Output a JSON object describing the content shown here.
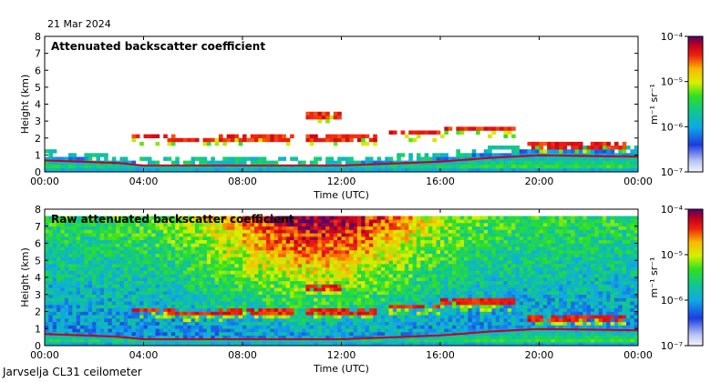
{
  "date_label": "21 Mar 2024",
  "footer_label": "Jarvselja CL31 ceilometer",
  "chart_data": [
    {
      "type": "heatmap",
      "title": "Attenuated backscatter coefficient",
      "xlabel": "Time (UTC)",
      "ylabel": "Height (km)",
      "xticks": [
        "00:00",
        "04:00",
        "08:00",
        "12:00",
        "16:00",
        "20:00",
        "00:00"
      ],
      "xlim_hours": [
        0,
        24
      ],
      "ylim": [
        0,
        8
      ],
      "yticks": [
        0,
        1,
        2,
        3,
        4,
        5,
        6,
        7,
        8
      ],
      "colorbar": {
        "unit": "m⁻¹ sr⁻¹",
        "scale": "log",
        "range": [
          1e-07,
          0.0001
        ],
        "tick_labels": [
          "10⁻⁴",
          "10⁻⁵",
          "10⁻⁶",
          "10⁻⁷"
        ]
      },
      "features": {
        "boundary_layer_top_km": [
          [
            0,
            0.9
          ],
          [
            3,
            0.7
          ],
          [
            4,
            0.5
          ],
          [
            8,
            0.5
          ],
          [
            12,
            0.5
          ],
          [
            16,
            0.8
          ],
          [
            18,
            1.1
          ],
          [
            20,
            1.3
          ],
          [
            24,
            1.2
          ]
        ],
        "cloud_layers": [
          {
            "start": 3.5,
            "end": 5.2,
            "height": 2.1
          },
          {
            "start": 5.0,
            "end": 7.5,
            "height": 1.9
          },
          {
            "start": 7.0,
            "end": 10.0,
            "height": 1.95
          },
          {
            "start": 10.5,
            "end": 13.5,
            "height": 2.0
          },
          {
            "start": 14.0,
            "end": 16.0,
            "height": 2.3
          },
          {
            "start": 16.0,
            "end": 19.0,
            "height": 2.55
          },
          {
            "start": 10.5,
            "end": 12.0,
            "height": 3.35
          },
          {
            "start": 19.5,
            "end": 23.5,
            "height": 1.6
          }
        ]
      }
    },
    {
      "type": "heatmap",
      "title": "Raw attenuated backscatter coefficient",
      "xlabel": "Time (UTC)",
      "ylabel": "Height (km)",
      "xticks": [
        "00:00",
        "04:00",
        "08:00",
        "12:00",
        "16:00",
        "20:00",
        "00:00"
      ],
      "xlim_hours": [
        0,
        24
      ],
      "ylim": [
        0,
        8
      ],
      "yticks": [
        0,
        1,
        2,
        3,
        4,
        5,
        6,
        7,
        8
      ],
      "colorbar": {
        "unit": "m⁻¹ sr⁻¹",
        "scale": "log",
        "range": [
          1e-07,
          0.0001
        ],
        "tick_labels": [
          "10⁻⁴",
          "10⁻⁵",
          "10⁻⁶",
          "10⁻⁷"
        ]
      }
    }
  ]
}
